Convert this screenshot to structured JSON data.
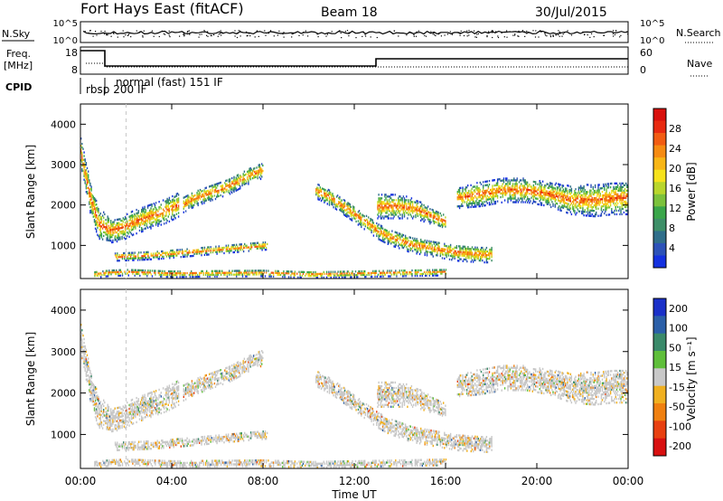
{
  "header": {
    "station": "Fort Hays East (fitACF)",
    "beam": "Beam 18",
    "date": "30/Jul/2015"
  },
  "status_panels": {
    "nsky_label": "N.Sky",
    "nsearch_label": "N.Search",
    "freq_label_top": "Freq.",
    "freq_label_unit": "[MHz]",
    "nave_label": "Nave",
    "cpid_label": "CPID",
    "noise_ticks_left": [
      "10^5",
      "10^0"
    ],
    "noise_ticks_right": [
      "10^5",
      "10^0"
    ],
    "freq_ticks_left": [
      "18",
      "8"
    ],
    "nave_ticks_right": [
      "60",
      "0"
    ],
    "cpid_modes": [
      {
        "label": "rbsp 200 IF",
        "start_hour": 0.0,
        "end_hour": 1.0
      },
      {
        "label": "normal (fast) 151 IF",
        "start_hour": 1.0,
        "end_hour": 24.0
      }
    ]
  },
  "chart_data": [
    {
      "type": "heatmap",
      "name": "power",
      "ylabel": "Slant Range [km]",
      "xlabel": "Time UT",
      "x_ticks": [
        "00:00",
        "04:00",
        "08:00",
        "12:00",
        "16:00",
        "20:00",
        "00:00"
      ],
      "x_hours": [
        0,
        4,
        8,
        12,
        16,
        20,
        24
      ],
      "y_ticks": [
        1000,
        2000,
        3000,
        4000
      ],
      "ylim": [
        180,
        4500
      ],
      "colorbar_label": "Power [dB]",
      "colorbar_ticks": [
        "4",
        "8",
        "12",
        "16",
        "20",
        "24",
        "28"
      ],
      "colorbar_colors": [
        "#1431e0",
        "#2c52b8",
        "#2f6e8a",
        "#3e8f68",
        "#3aa64a",
        "#7cc23c",
        "#b9d62c",
        "#f6e21c",
        "#f8b616",
        "#f68b12",
        "#f25c12",
        "#e82a10",
        "#d9100c"
      ],
      "bands": [
        {
          "t": [
            0.0,
            0.4,
            0.8,
            1.3,
            1.8,
            2.3,
            2.8,
            3.3,
            3.8,
            4.3
          ],
          "r": [
            3300,
            2200,
            1500,
            1350,
            1400,
            1550,
            1650,
            1750,
            1850,
            2000
          ],
          "w": [
            350,
            400,
            400,
            300,
            300,
            300,
            300,
            300,
            300,
            300
          ]
        },
        {
          "t": [
            4.5,
            5.0,
            5.5,
            6.0,
            6.5,
            7.0,
            7.5,
            8.0
          ],
          "r": [
            2000,
            2150,
            2250,
            2350,
            2450,
            2600,
            2750,
            2850
          ],
          "w": [
            200,
            200,
            200,
            200,
            200,
            200,
            200,
            200
          ]
        },
        {
          "t": [
            1.5,
            2.5,
            3.5,
            4.5,
            5.5,
            6.5,
            7.5,
            8.2
          ],
          "r": [
            700,
            720,
            750,
            800,
            850,
            900,
            950,
            980
          ],
          "w": [
            100,
            100,
            100,
            100,
            100,
            100,
            100,
            100
          ]
        },
        {
          "t": [
            10.3,
            11.0,
            11.5,
            12.0,
            12.5,
            13.0,
            13.5,
            14.0,
            14.5,
            15.0,
            15.5,
            16.0,
            16.5,
            17.0,
            17.5,
            18.0
          ],
          "r": [
            2350,
            2150,
            1950,
            1750,
            1550,
            1350,
            1200,
            1100,
            1000,
            950,
            900,
            850,
            800,
            780,
            760,
            760
          ],
          "w": [
            200,
            200,
            200,
            200,
            200,
            200,
            200,
            200,
            200,
            200,
            200,
            200,
            200,
            200,
            200,
            200
          ]
        },
        {
          "t": [
            13.0,
            13.8,
            14.6,
            15.4,
            16.0
          ],
          "r": [
            1950,
            1950,
            1900,
            1700,
            1550
          ],
          "w": [
            300,
            300,
            250,
            200,
            200
          ]
        },
        {
          "t": [
            16.5,
            17.5,
            18.5,
            19.5,
            20.5,
            21.5,
            22.5,
            23.3,
            24.0
          ],
          "r": [
            2150,
            2250,
            2350,
            2350,
            2250,
            2100,
            2100,
            2150,
            2150
          ],
          "w": [
            250,
            300,
            300,
            300,
            300,
            350,
            400,
            400,
            400
          ]
        },
        {
          "t": [
            0.6,
            1.2,
            2.0,
            3.0,
            4.0,
            6.0,
            8.0,
            10.0,
            12.0,
            14.0,
            16.0
          ],
          "r": [
            260,
            300,
            320,
            300,
            280,
            290,
            300,
            260,
            280,
            300,
            320
          ],
          "w": [
            80,
            80,
            80,
            80,
            80,
            80,
            80,
            80,
            80,
            80,
            80
          ]
        }
      ]
    },
    {
      "type": "heatmap",
      "name": "velocity",
      "ylabel": "Slant Range [km]",
      "xlabel": "Time UT",
      "x_ticks": [
        "00:00",
        "04:00",
        "08:00",
        "12:00",
        "16:00",
        "20:00",
        "00:00"
      ],
      "x_hours": [
        0,
        4,
        8,
        12,
        16,
        20,
        24
      ],
      "y_ticks": [
        1000,
        2000,
        3000,
        4000
      ],
      "ylim": [
        180,
        4500
      ],
      "colorbar_label": "Velocity [m s⁻¹]",
      "colorbar_ticks": [
        "200",
        "100",
        "50",
        "15",
        "-15",
        "-50",
        "-100",
        "-200"
      ],
      "colorbar_colors": [
        "#1a30c8",
        "#2b5fa8",
        "#3a8a6a",
        "#5fbf3a",
        "#c8c8c8",
        "#f0b020",
        "#f08010",
        "#e84010",
        "#d81010"
      ]
    }
  ]
}
